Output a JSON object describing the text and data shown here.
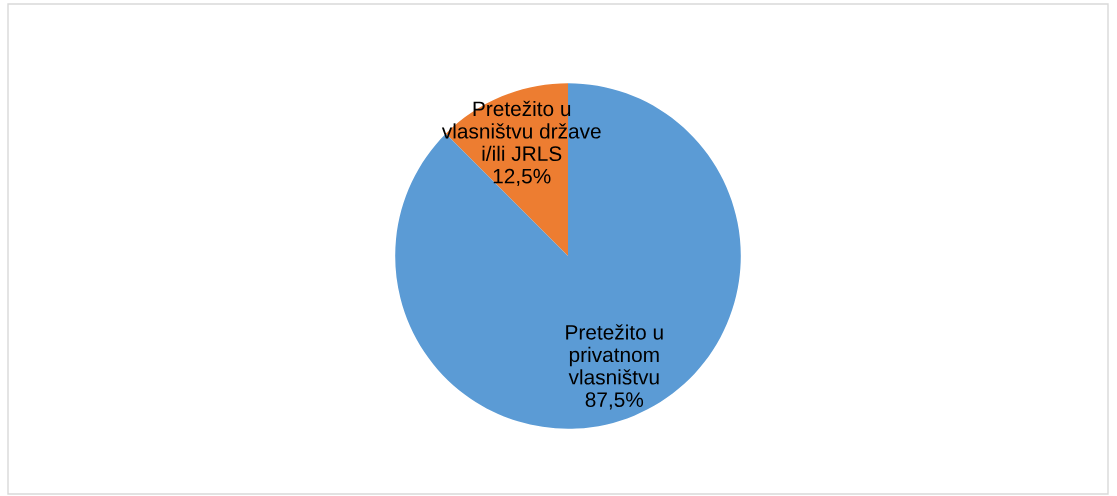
{
  "chart_data": {
    "type": "pie",
    "categories": [
      "Pretežito u\nvlasništvu države\ni/ili JRLS",
      "Pretežito u\nprivatnom\nvlasništvu"
    ],
    "values": [
      12.5,
      87.5
    ],
    "value_labels": [
      "12,5%",
      "87,5%"
    ],
    "colors": [
      "#ed7d31",
      "#5b9bd5"
    ]
  }
}
